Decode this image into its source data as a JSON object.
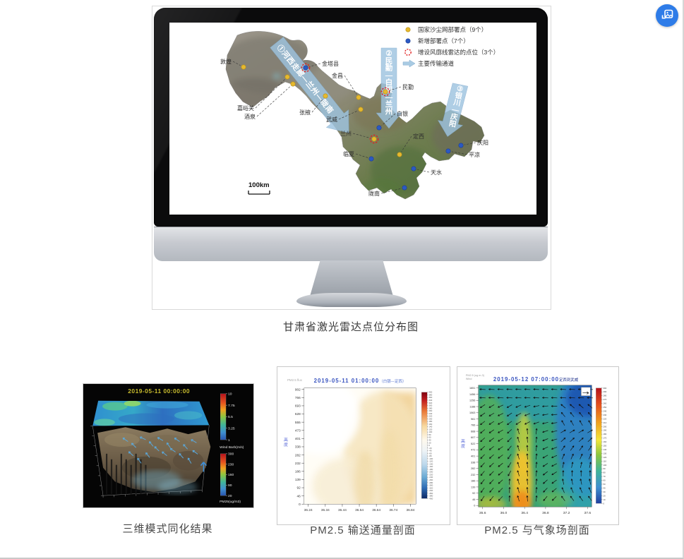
{
  "floating_button": {
    "icon": "image-with-arrow",
    "color": "#2e7ce8"
  },
  "monitor_figure": {
    "caption": "甘肃省激光雷达点位分布图",
    "map": {
      "legend": [
        {
          "icon": "yellow-dot",
          "label": "国家沙尘网部署点（9个）"
        },
        {
          "icon": "blue-dot",
          "label": "新增部署点（7个）"
        },
        {
          "icon": "red-dashed-circle",
          "label": "增设风廓线雷达的点位（3个）"
        },
        {
          "icon": "blue-arrow",
          "label": "主要传输通道"
        }
      ],
      "transport_channels": [
        {
          "label": "①河西走廊—兰州—陇南"
        },
        {
          "label": "②民勤—白银—兰州"
        },
        {
          "label": "③银川—庆阳"
        }
      ],
      "scale_label": "100km",
      "stations": [
        {
          "name": "敦煌",
          "type": "national",
          "wind_profiler": false,
          "dot": [
            105,
            63
          ],
          "label": [
            88,
            58
          ],
          "anchor": "end"
        },
        {
          "name": "金塔县",
          "type": "new",
          "wind_profiler": true,
          "dot": [
            193,
            64
          ],
          "label": [
            216,
            61
          ],
          "anchor": "start"
        },
        {
          "name": "嘉峪关",
          "type": "national",
          "wind_profiler": false,
          "dot": [
            167,
            77
          ],
          "label": [
            120,
            124
          ],
          "anchor": "end"
        },
        {
          "name": "酒泉",
          "type": "national",
          "wind_profiler": false,
          "dot": [
            175,
            87
          ],
          "label": [
            122,
            136
          ],
          "anchor": "end"
        },
        {
          "name": "张掖",
          "type": "national",
          "wind_profiler": false,
          "dot": [
            221,
            104
          ],
          "label": [
            200,
            130
          ],
          "anchor": "end"
        },
        {
          "name": "金昌",
          "type": "national",
          "wind_profiler": false,
          "dot": [
            268,
            106
          ],
          "label": [
            246,
            78
          ],
          "anchor": "end"
        },
        {
          "name": "民勤",
          "type": "national",
          "wind_profiler": true,
          "dot": [
            306,
            98
          ],
          "label": [
            330,
            94
          ],
          "anchor": "start"
        },
        {
          "name": "武威",
          "type": "national",
          "wind_profiler": false,
          "dot": [
            271,
            123
          ],
          "label": [
            238,
            140
          ],
          "anchor": "end"
        },
        {
          "name": "白银",
          "type": "new",
          "wind_profiler": false,
          "dot": [
            297,
            149
          ],
          "label": [
            322,
            132
          ],
          "anchor": "start"
        },
        {
          "name": "兰州",
          "type": "national",
          "wind_profiler": true,
          "dot": [
            290,
            165
          ],
          "label": [
            258,
            160
          ],
          "anchor": "end"
        },
        {
          "name": "定西",
          "type": "national",
          "wind_profiler": false,
          "dot": [
            326,
            187
          ],
          "label": [
            345,
            164
          ],
          "anchor": "start"
        },
        {
          "name": "临夏",
          "type": "new",
          "wind_profiler": false,
          "dot": [
            286,
            193
          ],
          "label": [
            262,
            189
          ],
          "anchor": "end"
        },
        {
          "name": "天水",
          "type": "new",
          "wind_profiler": false,
          "dot": [
            346,
            207
          ],
          "label": [
            370,
            215
          ],
          "anchor": "start"
        },
        {
          "name": "陇南",
          "type": "new",
          "wind_profiler": false,
          "dot": [
            333,
            234
          ],
          "label": [
            298,
            245
          ],
          "anchor": "end"
        },
        {
          "name": "庆阳",
          "type": "new",
          "wind_profiler": false,
          "dot": [
            413,
            174
          ],
          "label": [
            436,
            173
          ],
          "anchor": "start"
        },
        {
          "name": "平凉",
          "type": "new",
          "wind_profiler": false,
          "dot": [
            395,
            182
          ],
          "label": [
            424,
            190
          ],
          "anchor": "start"
        }
      ]
    }
  },
  "figures": [
    {
      "caption": "三维模式同化结果",
      "timestamp": "2019-05-11 00:00:00",
      "colorbars": [
        {
          "title": "Wind Barb(m/s)",
          "ticks": [
            "10",
            "7.75",
            "5.5",
            "3.25",
            "1"
          ]
        },
        {
          "title": "PM25(ug/m3)",
          "ticks": [
            "300",
            "230",
            "160",
            "90",
            "20"
          ]
        }
      ]
    },
    {
      "caption": "PM2.5 输送通量剖面",
      "corner_label": "PM2.5 flux",
      "title_main": "2019-05-11 01:00:00",
      "title_suffix": "（白银—定西）",
      "ylabel": "高度",
      "yticks": [
        "902",
        "766",
        "693",
        "628",
        "555",
        "473",
        "401",
        "338",
        "282",
        "232",
        "186",
        "139",
        "92",
        "46",
        "0"
      ],
      "xticks": [
        "36.24",
        "36.34",
        "36.44",
        "36.54",
        "36.64",
        "36.74",
        "36.84"
      ],
      "colorbar_ticks": [
        400,
        380,
        360,
        340,
        320,
        300,
        280,
        260,
        240,
        220,
        200,
        180,
        160,
        140,
        120,
        100,
        80,
        60,
        40,
        20,
        0,
        -20,
        -40,
        -60,
        -80,
        -100,
        -120,
        -140,
        -160,
        -180,
        -200,
        -220,
        -240,
        -260,
        -280,
        -300,
        -320,
        -340,
        -360,
        -380,
        -400
      ]
    },
    {
      "caption": "PM2.5 与气象场剖面",
      "corner_label_1": "PM2.5 (ug m-3)",
      "corner_label_2": "Wind",
      "title_main": "2019-05-12 07:00:00",
      "title_suffix": "定西到武威",
      "ylabel": "高度",
      "yticks": [
        "1651",
        "1456",
        "1256",
        "1188",
        "1063",
        "961",
        "766",
        "668",
        "607",
        "522",
        "472",
        "401",
        "338",
        "282",
        "232",
        "186",
        "139",
        "92",
        "46",
        "0"
      ],
      "xticks": [
        "35.6",
        "36.0",
        "36.4",
        "36.8",
        "37.2",
        "37.6"
      ],
      "colorbar_ticks": [
        300,
        290,
        280,
        270,
        260,
        250,
        240,
        230,
        220,
        210,
        200,
        190,
        180,
        170,
        160,
        150,
        140,
        130,
        120,
        110,
        100,
        90,
        80,
        70,
        60,
        50,
        40,
        30,
        20,
        10,
        0
      ]
    }
  ],
  "chart_data": [
    {
      "type": "heatmap",
      "title": "2019-05-11 01:00:00（白银—定西）",
      "ylabel": "高度",
      "x_ticks": [
        36.24,
        36.34,
        36.44,
        36.54,
        36.64,
        36.74,
        36.84
      ],
      "y_ticks": [
        902,
        766,
        693,
        628,
        555,
        473,
        401,
        338,
        282,
        232,
        186,
        139,
        92,
        46,
        0
      ],
      "colorbar_range": [
        -400,
        400
      ],
      "legend_position": "right",
      "description": "PM2.5 transport flux cross-section; weak positive (cream/light orange) values over most of the section, strongest orange along the eastern edge near 36.84"
    },
    {
      "type": "heatmap",
      "title": "2019-05-12 07:00:00 定西到武威",
      "ylabel": "高度",
      "x_ticks": [
        35.6,
        36.0,
        36.4,
        36.8,
        37.2,
        37.6
      ],
      "y_ticks": [
        1651,
        1456,
        1256,
        1188,
        1063,
        961,
        766,
        668,
        607,
        522,
        472,
        401,
        338,
        282,
        232,
        186,
        139,
        92,
        46,
        0
      ],
      "colorbar_range": [
        0,
        300
      ],
      "legend_position": "right",
      "description": "PM2.5 concentration cross-section with wind vectors; yellow-orange plume (200-280 ug/m3) near 36.4 in the lowest levels, green background (~120-160), blue (<80) aloft on the eastern side"
    }
  ]
}
